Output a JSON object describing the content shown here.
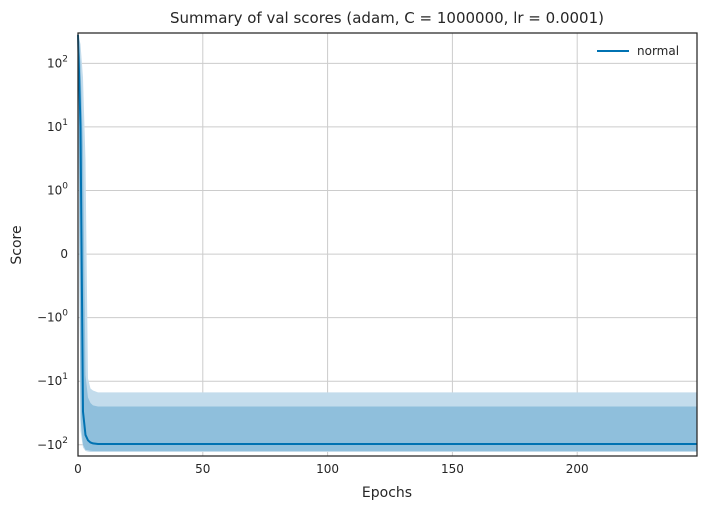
{
  "chart_data": {
    "type": "line",
    "title": "Summary of val scores (adam, C = 1000000, lr = 0.0001)",
    "xlabel": "Epochs",
    "ylabel": "Score",
    "xlim": [
      0,
      248
    ],
    "y_scale": "symlog",
    "y_linthresh": 1,
    "ylim": [
      -150,
      300
    ],
    "grid": true,
    "legend_position": "top-right",
    "x_ticks": [
      0,
      50,
      100,
      150,
      200
    ],
    "x_tick_labels": [
      "0",
      "50",
      "100",
      "150",
      "200"
    ],
    "y_ticks": [
      100,
      10,
      1,
      0,
      -1,
      -10,
      -100
    ],
    "y_tick_labels": [
      {
        "base": "10",
        "exp": "2"
      },
      {
        "base": "10",
        "exp": "1"
      },
      {
        "base": "10",
        "exp": "0"
      },
      {
        "base": "0",
        "exp": ""
      },
      {
        "base": "−10",
        "exp": "0"
      },
      {
        "base": "−10",
        "exp": "1"
      },
      {
        "base": "−10",
        "exp": "2"
      }
    ],
    "series": [
      {
        "name": "normal",
        "color": "#0072b2",
        "band_color_outer": "#c3dcec",
        "band_color_inner": "#8fbfdc",
        "x": [
          0,
          1,
          2,
          3,
          4,
          5,
          6,
          8,
          10,
          15,
          20,
          50,
          100,
          150,
          200,
          248
        ],
        "mean": [
          280,
          10,
          -30,
          -70,
          -85,
          -92,
          -95,
          -97,
          -97,
          -97,
          -97,
          -97,
          -97,
          -97,
          -97,
          -97
        ],
        "inner_upper": [
          290,
          100,
          5,
          -8,
          -18,
          -22,
          -24,
          -25,
          -25,
          -25,
          -25,
          -25,
          -25,
          -25,
          -25,
          -25
        ],
        "inner_lower": [
          250,
          -40,
          -100,
          -120,
          -122,
          -124,
          -125,
          -125,
          -125,
          -125,
          -125,
          -125,
          -125,
          -125,
          -125,
          -125
        ],
        "outer_upper": [
          300,
          200,
          60,
          3,
          -9,
          -13,
          -14,
          -15,
          -15,
          -15,
          -15,
          -15,
          -15,
          -15,
          -15,
          -15
        ],
        "outer_lower": [
          240,
          -60,
          -110,
          -125,
          -128,
          -130,
          -130,
          -130,
          -130,
          -130,
          -130,
          -130,
          -130,
          -130,
          -130,
          -130
        ]
      }
    ]
  }
}
